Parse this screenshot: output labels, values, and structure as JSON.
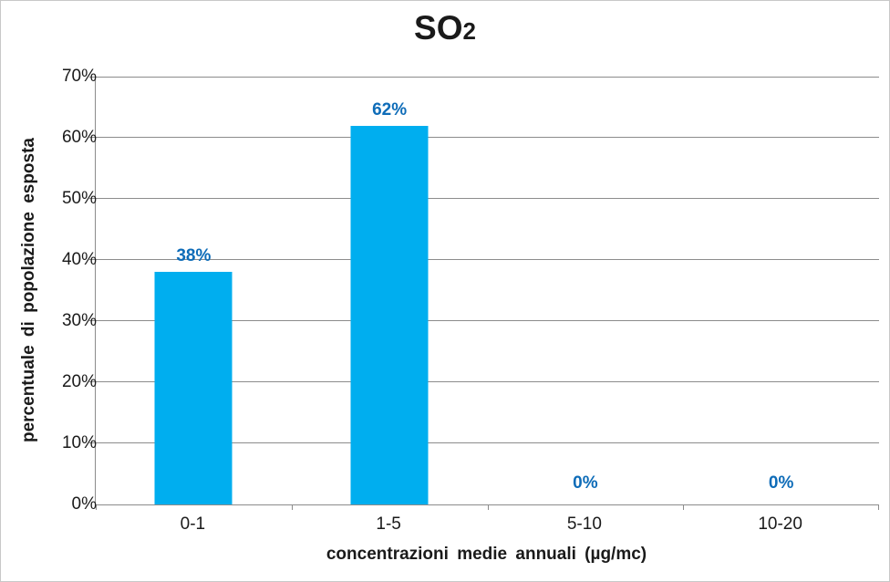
{
  "chart_data": {
    "type": "bar",
    "title_main": "SO",
    "title_sub": "2",
    "categories": [
      "0-1",
      "1-5",
      "5-10",
      "10-20"
    ],
    "values": [
      38,
      62,
      0,
      0
    ],
    "data_labels": [
      "38%",
      "62%",
      "0%",
      "0%"
    ],
    "xlabel": "concentrazioni medie annuali (µg/mc)",
    "ylabel": "percentuale di popolazione esposta",
    "ylim": [
      0,
      70
    ],
    "ytick_step": 10,
    "yticks": [
      "0%",
      "10%",
      "20%",
      "30%",
      "40%",
      "50%",
      "60%",
      "70%"
    ],
    "grid": "horizontal",
    "legend": "none",
    "colors": {
      "bar": "#00AEEF",
      "data_label": "#0E6CB8",
      "axis": "#8C8C8C",
      "gridline": "#8C8C8C",
      "text": "#1A1A1A",
      "frame_border": "#C8C8C8"
    }
  }
}
